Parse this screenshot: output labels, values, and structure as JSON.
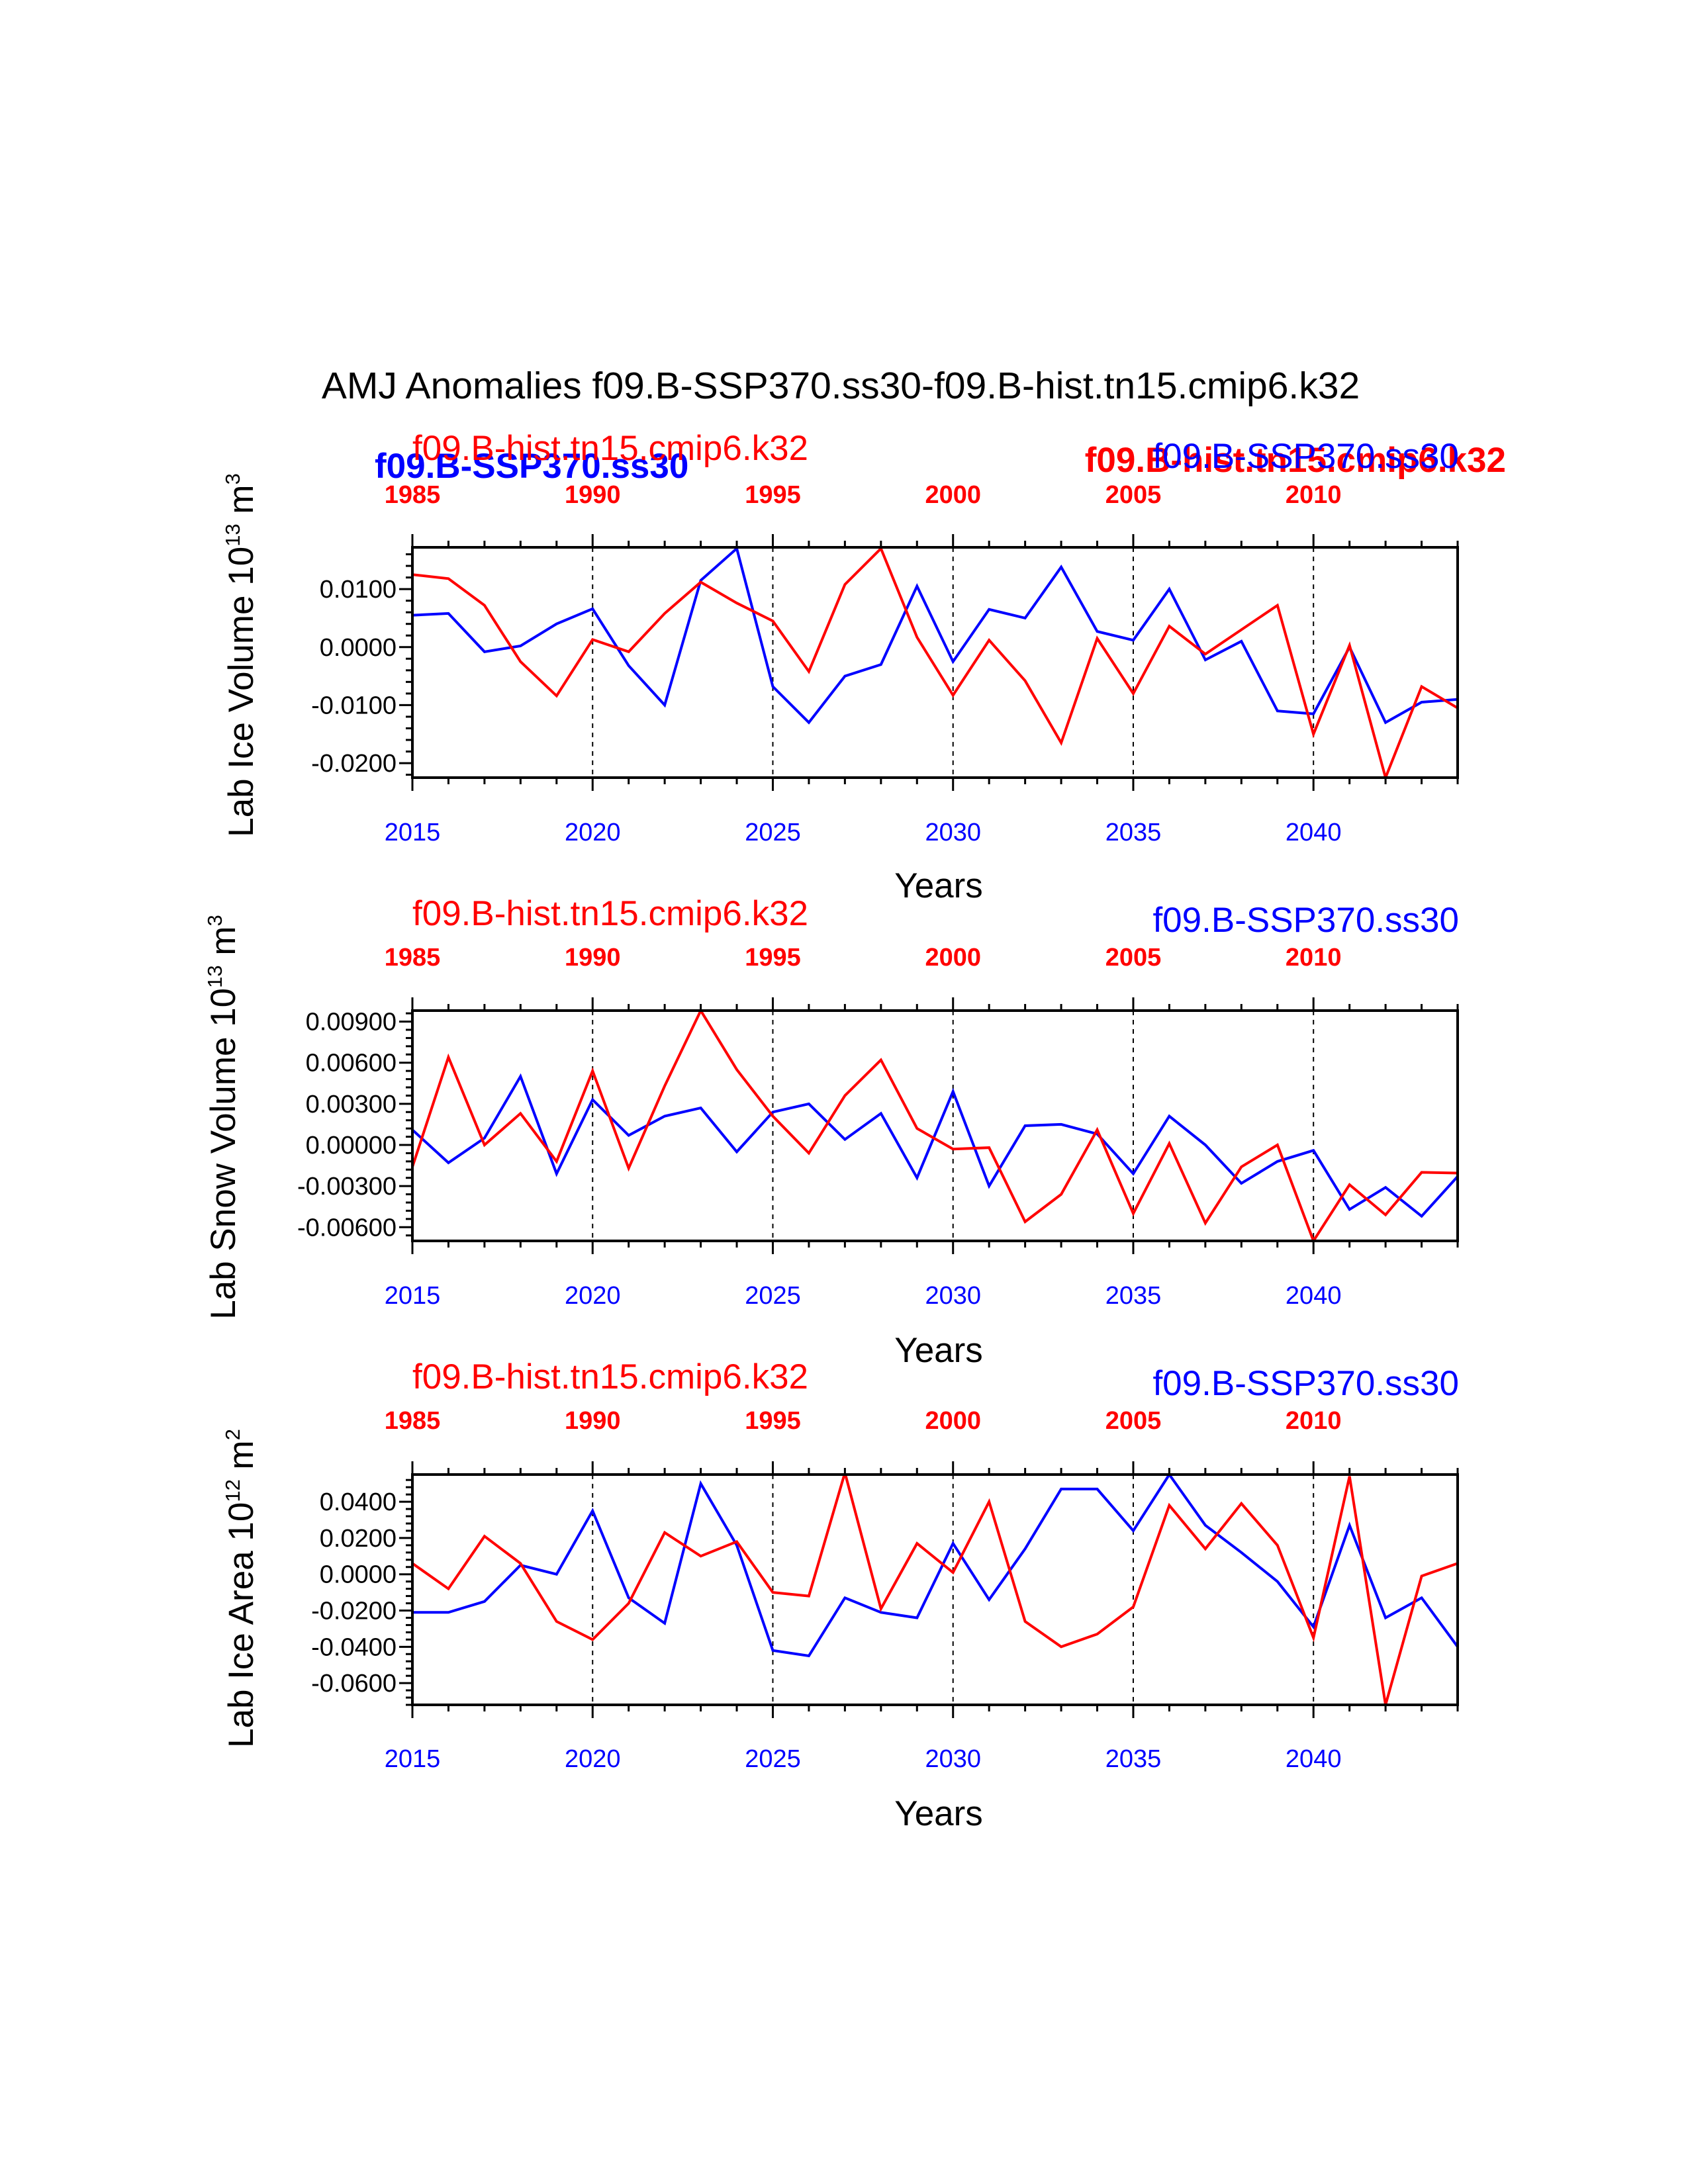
{
  "figure": {
    "title": "AMJ Anomalies f09.B-SSP370.ss30-f09.B-hist.tn15.cmip6.k32",
    "extra_labels": {
      "blue_bold": "f09.B-SSP370.ss30",
      "red_bold": "f09.B-hist.tn15.cmip6.k32"
    },
    "colors": {
      "blue_series": "#0000ff",
      "red_series": "#ff0000",
      "axes": "#000000"
    }
  },
  "chart_data": [
    {
      "type": "line",
      "id": "ice-volume",
      "ylabel": "Lab Ice Volume 10",
      "ylabel_exp": "13",
      "ylabel_unit": " m",
      "ylabel_unit_exp": "3",
      "xlabel": "Years",
      "top_left_label": "f09.B-hist.tn15.cmip6.k32",
      "top_right_label": "f09.B-SSP370.ss30",
      "ylim": [
        -0.0225,
        0.0172
      ],
      "yticks": [
        -0.02,
        -0.01,
        0.0,
        0.01
      ],
      "ytick_labels": [
        "-0.0200",
        "-0.0100",
        "0.0000",
        "0.0100"
      ],
      "yminor_step": 0.002,
      "xlim": [
        2015,
        2044
      ],
      "xticks": [
        2015,
        2020,
        2025,
        2030,
        2035,
        2040
      ],
      "xtick_labels": [
        "2015",
        "2020",
        "2025",
        "2030",
        "2035",
        "2040"
      ],
      "top_xtick_labels": [
        "1985",
        "1990",
        "1995",
        "2000",
        "2005",
        "2010"
      ],
      "grid_x": [
        2020,
        2025,
        2030,
        2035,
        2040
      ],
      "series": [
        {
          "name": "f09.B-SSP370.ss30",
          "color": "#0000ff",
          "x": [
            2015,
            2016,
            2017,
            2018,
            2019,
            2020,
            2021,
            2022,
            2023,
            2024,
            2025,
            2026,
            2027,
            2028,
            2029,
            2030,
            2031,
            2032,
            2033,
            2034,
            2035,
            2036,
            2037,
            2038,
            2039,
            2040,
            2041,
            2042,
            2043,
            2044
          ],
          "values": [
            0.0055,
            0.0058,
            -0.0008,
            0.0002,
            0.004,
            0.0066,
            -0.0032,
            -0.01,
            0.0115,
            0.017,
            -0.0068,
            -0.013,
            -0.005,
            -0.003,
            0.0105,
            -0.0025,
            0.0065,
            0.005,
            0.0138,
            0.0027,
            0.0012,
            0.01,
            -0.0022,
            0.001,
            -0.011,
            -0.0115,
            0.0,
            -0.013,
            -0.0095,
            -0.009
          ]
        },
        {
          "name": "f09.B-hist.tn15.cmip6.k32",
          "color": "#ff0000",
          "x": [
            2015,
            2016,
            2017,
            2018,
            2019,
            2020,
            2021,
            2022,
            2023,
            2024,
            2025,
            2026,
            2027,
            2028,
            2029,
            2030,
            2031,
            2032,
            2033,
            2034,
            2035,
            2036,
            2037,
            2038,
            2039,
            2040,
            2041,
            2042,
            2043,
            2044
          ],
          "values": [
            0.0125,
            0.0118,
            0.0072,
            -0.0025,
            -0.0084,
            0.0013,
            -0.0008,
            0.0058,
            0.0112,
            0.0076,
            0.0045,
            -0.0042,
            0.0108,
            0.017,
            0.0017,
            -0.0083,
            0.0012,
            -0.0058,
            -0.0165,
            0.0015,
            -0.008,
            0.0036,
            -0.0012,
            0.003,
            0.0072,
            -0.015,
            0.0003,
            -0.0225,
            -0.0068,
            -0.0105
          ]
        }
      ]
    },
    {
      "type": "line",
      "id": "snow-volume",
      "ylabel": "Lab Snow Volume 10",
      "ylabel_exp": "13",
      "ylabel_unit": " m",
      "ylabel_unit_exp": "3",
      "xlabel": "Years",
      "top_left_label": "f09.B-hist.tn15.cmip6.k32",
      "top_right_label": "f09.B-SSP370.ss30",
      "ylim": [
        -0.007,
        0.0098
      ],
      "yticks": [
        -0.006,
        -0.003,
        0.0,
        0.003,
        0.006,
        0.009
      ],
      "ytick_labels": [
        "-0.00600",
        "-0.00300",
        "0.00000",
        "0.00300",
        "0.00600",
        "0.00900"
      ],
      "yminor_step": 0.0006,
      "xlim": [
        2015,
        2044
      ],
      "xticks": [
        2015,
        2020,
        2025,
        2030,
        2035,
        2040
      ],
      "xtick_labels": [
        "2015",
        "2020",
        "2025",
        "2030",
        "2035",
        "2040"
      ],
      "top_xtick_labels": [
        "1985",
        "1990",
        "1995",
        "2000",
        "2005",
        "2010"
      ],
      "grid_x": [
        2020,
        2025,
        2030,
        2035,
        2040
      ],
      "series": [
        {
          "name": "f09.B-SSP370.ss30",
          "color": "#0000ff",
          "x": [
            2015,
            2016,
            2017,
            2018,
            2019,
            2020,
            2021,
            2022,
            2023,
            2024,
            2025,
            2026,
            2027,
            2028,
            2029,
            2030,
            2031,
            2032,
            2033,
            2034,
            2035,
            2036,
            2037,
            2038,
            2039,
            2040,
            2041,
            2042,
            2043,
            2044
          ],
          "values": [
            0.0011,
            -0.0013,
            0.0005,
            0.005,
            -0.0021,
            0.0033,
            0.0007,
            0.0021,
            0.0027,
            -0.0005,
            0.0024,
            0.003,
            0.0004,
            0.0023,
            -0.0024,
            0.0039,
            -0.003,
            0.0014,
            0.0015,
            0.0008,
            -0.0021,
            0.0021,
            0.0,
            -0.0028,
            -0.0012,
            -0.0004,
            -0.0047,
            -0.0031,
            -0.0052,
            -0.0023
          ]
        },
        {
          "name": "f09.B-hist.tn15.cmip6.k32",
          "color": "#ff0000",
          "x": [
            2015,
            2016,
            2017,
            2018,
            2019,
            2020,
            2021,
            2022,
            2023,
            2024,
            2025,
            2026,
            2027,
            2028,
            2029,
            2030,
            2031,
            2032,
            2033,
            2034,
            2035,
            2036,
            2037,
            2038,
            2039,
            2040,
            2041,
            2042,
            2043,
            2045
          ],
          "values": [
            -0.0016,
            0.0064,
            0.0,
            0.0023,
            -0.0012,
            0.0054,
            -0.0017,
            0.0043,
            0.0098,
            0.0055,
            0.0021,
            -0.0006,
            0.0036,
            0.0062,
            0.0012,
            -0.0003,
            -0.0002,
            -0.0056,
            -0.0036,
            0.0011,
            -0.005,
            0.0001,
            -0.0057,
            -0.0016,
            0.0,
            -0.007,
            -0.0029,
            -0.0051,
            -0.002,
            -0.0021
          ]
        }
      ]
    },
    {
      "type": "line",
      "id": "ice-area",
      "ylabel": "Lab Ice Area 10",
      "ylabel_exp": "12",
      "ylabel_unit": " m",
      "ylabel_unit_exp": "2",
      "xlabel": "Years",
      "top_left_label": "f09.B-hist.tn15.cmip6.k32",
      "top_right_label": "f09.B-SSP370.ss30",
      "ylim": [
        -0.072,
        0.055
      ],
      "yticks": [
        -0.06,
        -0.04,
        -0.02,
        0.0,
        0.02,
        0.04
      ],
      "ytick_labels": [
        "-0.0600",
        "-0.0400",
        "-0.0200",
        "0.0000",
        "0.0200",
        "0.0400"
      ],
      "yminor_step": 0.004,
      "xlim": [
        2015,
        2044
      ],
      "xticks": [
        2015,
        2020,
        2025,
        2030,
        2035,
        2040
      ],
      "xtick_labels": [
        "2015",
        "2020",
        "2025",
        "2030",
        "2035",
        "2040"
      ],
      "top_xtick_labels": [
        "1985",
        "1990",
        "1995",
        "2000",
        "2005",
        "2010"
      ],
      "grid_x": [
        2020,
        2025,
        2030,
        2035,
        2040
      ],
      "series": [
        {
          "name": "f09.B-SSP370.ss30",
          "color": "#0000ff",
          "x": [
            2015,
            2016,
            2017,
            2018,
            2019,
            2020,
            2021,
            2022,
            2023,
            2024,
            2025,
            2026,
            2027,
            2028,
            2029,
            2030,
            2031,
            2032,
            2033,
            2034,
            2035,
            2036,
            2037,
            2038,
            2039,
            2040,
            2041,
            2042,
            2043,
            2044
          ],
          "values": [
            -0.021,
            -0.021,
            -0.015,
            0.005,
            0.0,
            0.035,
            -0.013,
            -0.027,
            0.05,
            0.016,
            -0.042,
            -0.045,
            -0.013,
            -0.021,
            -0.024,
            0.017,
            -0.014,
            0.014,
            0.047,
            0.047,
            0.024,
            0.055,
            0.027,
            0.012,
            -0.004,
            -0.029,
            0.027,
            -0.024,
            -0.013,
            -0.04
          ]
        },
        {
          "name": "f09.B-hist.tn15.cmip6.k32",
          "color": "#ff0000",
          "x": [
            2015,
            2016,
            2017,
            2018,
            2019,
            2020,
            2021,
            2022,
            2023,
            2024,
            2025,
            2026,
            2027,
            2028,
            2029,
            2030,
            2031,
            2032,
            2033,
            2034,
            2035,
            2036,
            2037,
            2038,
            2039,
            2040,
            2041,
            2042,
            2043,
            2044
          ],
          "values": [
            0.006,
            -0.008,
            0.021,
            0.006,
            -0.026,
            -0.036,
            -0.016,
            0.023,
            0.01,
            0.018,
            -0.01,
            -0.012,
            0.056,
            -0.019,
            0.017,
            0.001,
            0.04,
            -0.026,
            -0.04,
            -0.033,
            -0.018,
            0.038,
            0.014,
            0.039,
            0.016,
            -0.035,
            0.054,
            -0.072,
            -0.001,
            0.006
          ]
        }
      ]
    }
  ]
}
